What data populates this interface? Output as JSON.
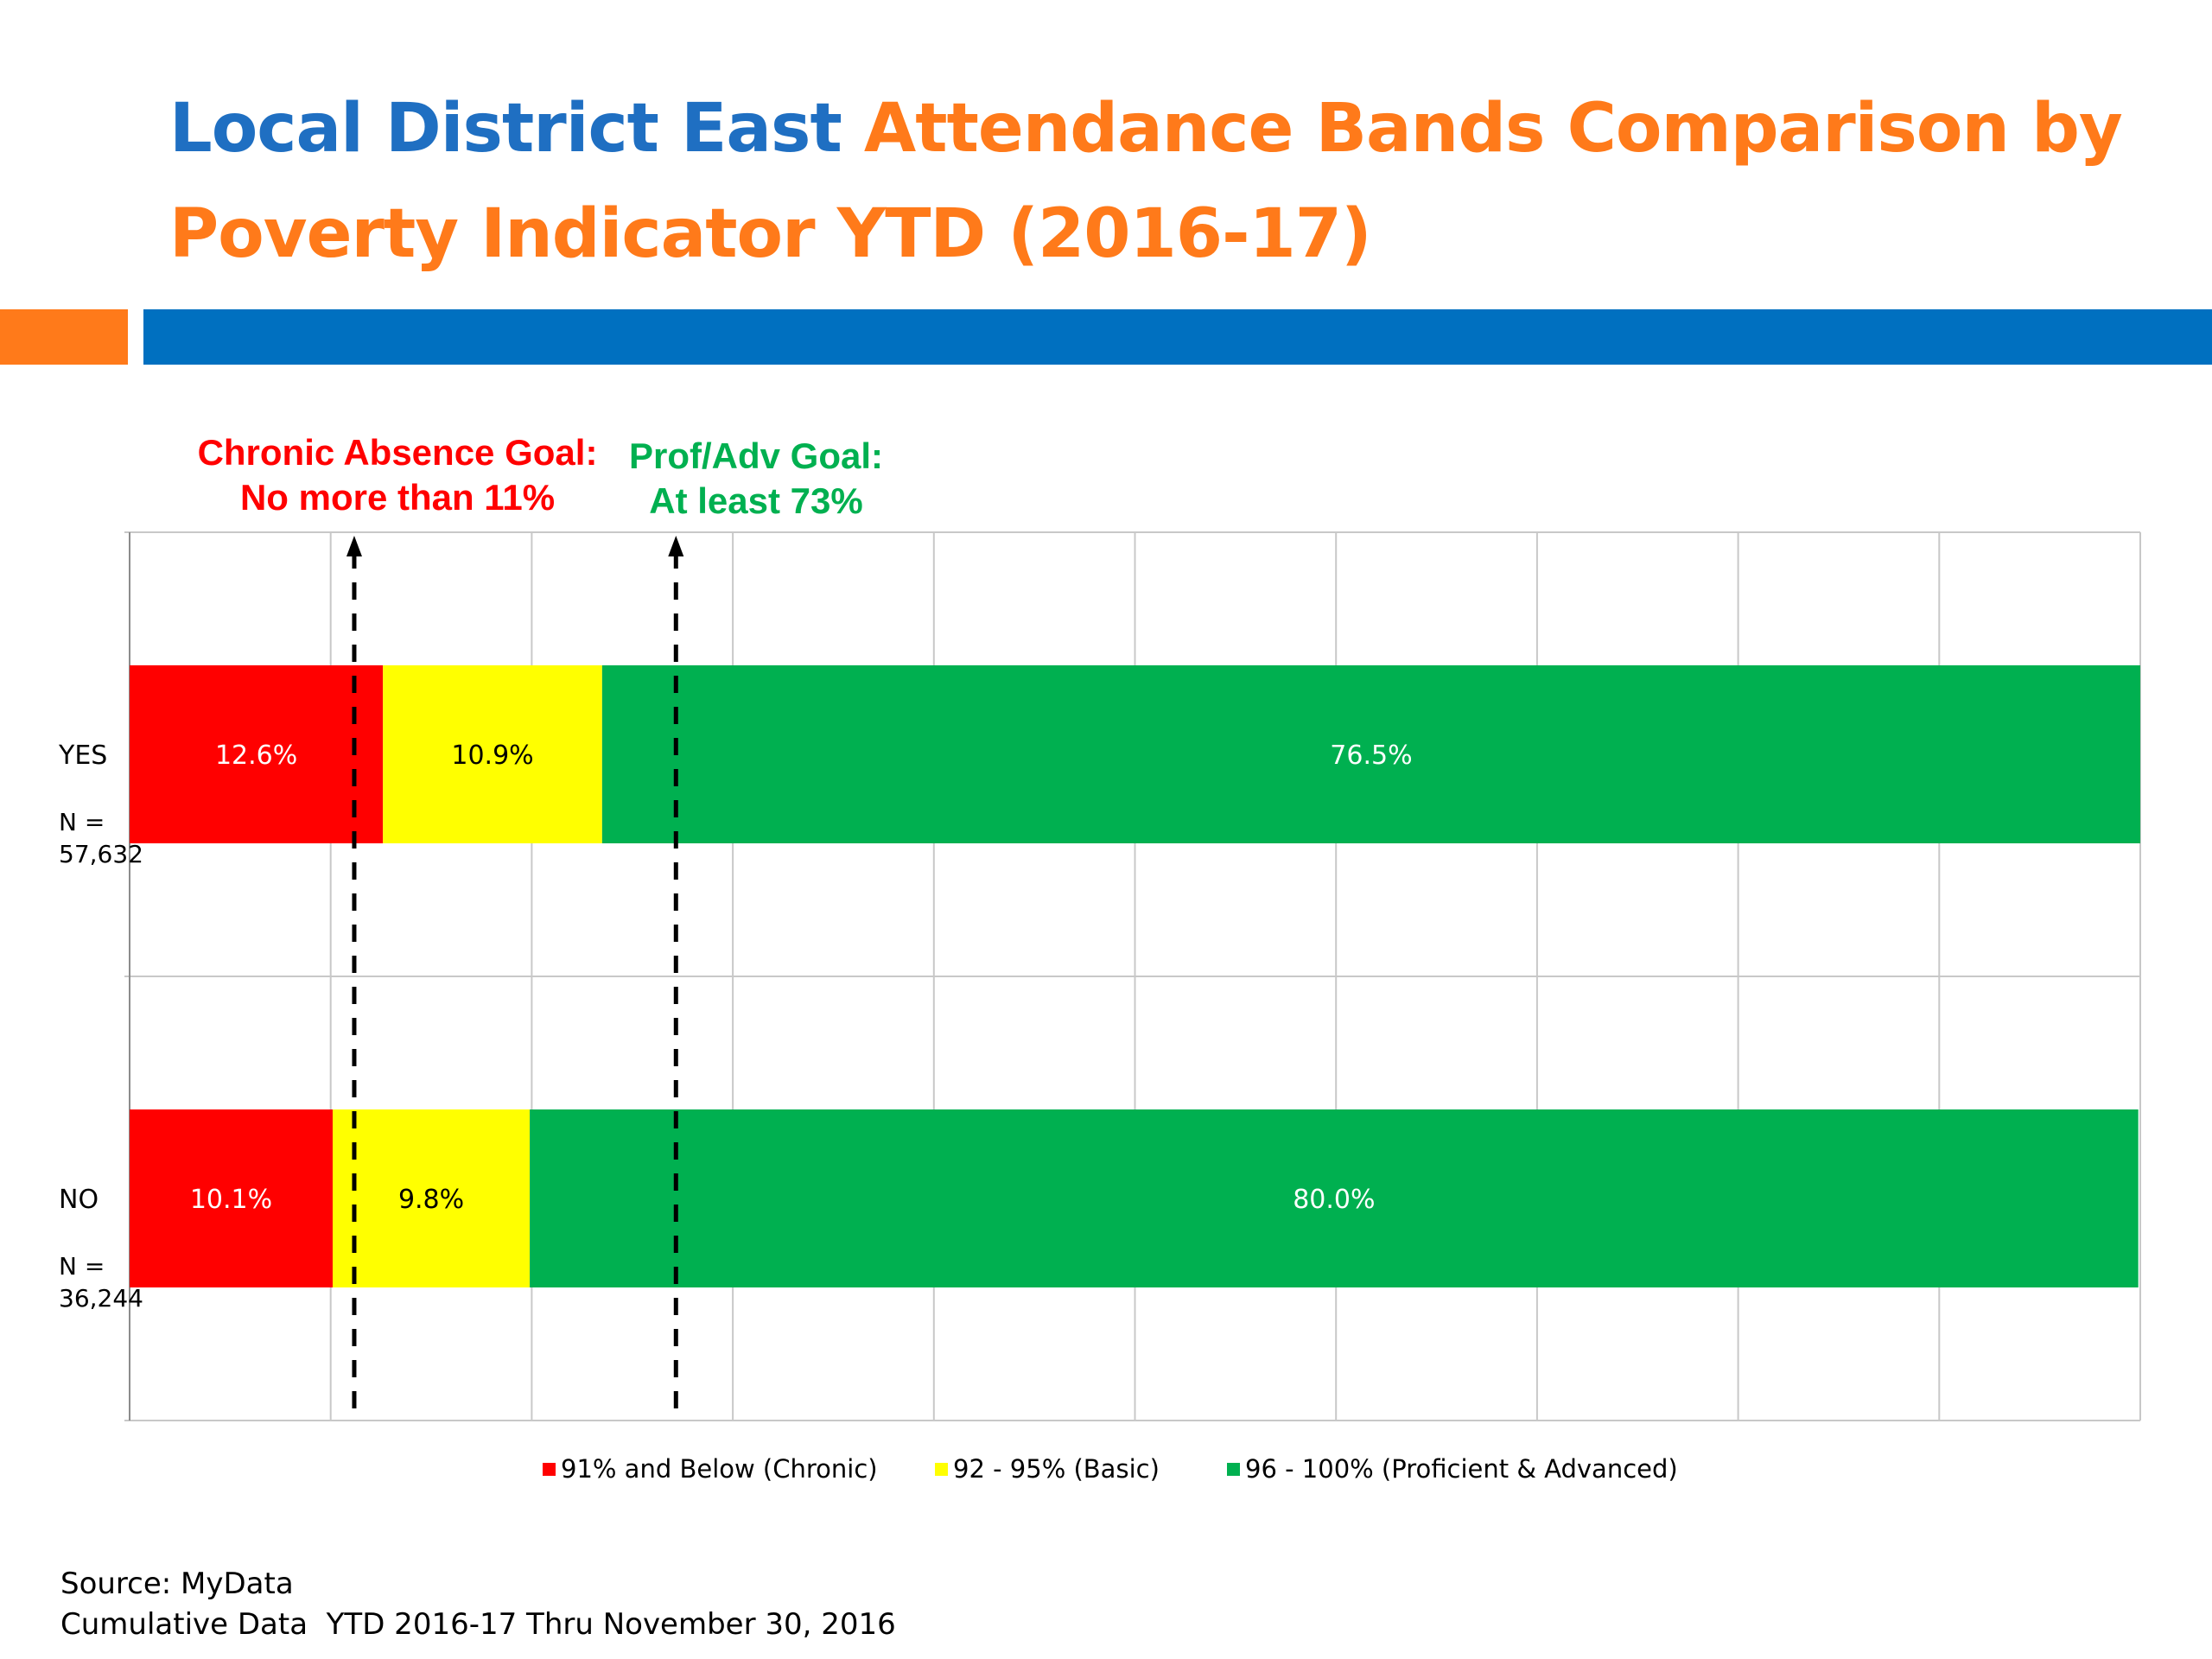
{
  "slide": {
    "title_part1": "Local District East",
    "title_part2": "Attendance Bands Comparison  by Poverty Indicator YTD (2016-17)",
    "accent_colors": {
      "blue": "#1f6fc2",
      "orange": "#ff7a1a",
      "band_blue": "#0070c0"
    }
  },
  "goals": {
    "chronic": {
      "line1": "Chronic Absence Goal:",
      "line2": "No more than 11%",
      "value": 11,
      "color": "#ff0000"
    },
    "profadv": {
      "line1": "Prof/Adv Goal:",
      "line2": "At least 73%",
      "value": 27,
      "color": "#00b050"
    }
  },
  "chart_data": {
    "type": "bar",
    "orientation": "horizontal",
    "stacked": true,
    "categories": [
      "YES",
      "NO"
    ],
    "category_notes": [
      "N = 57,632",
      "N = 36,244"
    ],
    "series": [
      {
        "name": "91% and Below (Chronic)",
        "color": "#ff0000",
        "values": [
          12.6,
          10.1
        ],
        "labels": [
          "12.6%",
          "10.1%"
        ],
        "label_color": "#ffffff"
      },
      {
        "name": "92 - 95% (Basic)",
        "color": "#ffff00",
        "values": [
          10.9,
          9.8
        ],
        "labels": [
          "10.9%",
          "9.8%"
        ],
        "label_color": "#000000"
      },
      {
        "name": "96 - 100% (Proficient & Advanced)",
        "color": "#00b050",
        "values": [
          76.5,
          80.0
        ],
        "labels": [
          "76.5%",
          "80.0%"
        ],
        "label_color": "#ffffff"
      }
    ],
    "xlim": [
      0,
      100
    ],
    "grid": true,
    "legend_position": "bottom",
    "reference_lines": [
      {
        "name": "chronic-absence-goal",
        "value": 11,
        "style": "dashed-arrow"
      },
      {
        "name": "prof-adv-goal",
        "value": 27,
        "style": "dashed-arrow"
      }
    ]
  },
  "source": {
    "line1": "Source: MyData",
    "line2": "Cumulative Data  YTD 2016-17 Thru November 30, 2016"
  }
}
